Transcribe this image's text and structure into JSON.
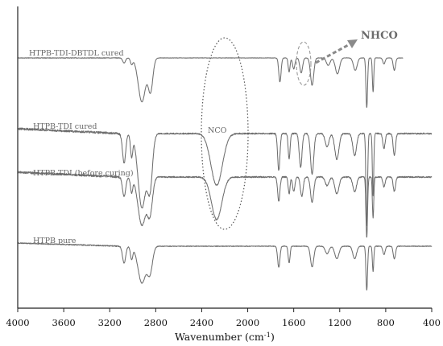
{
  "chart_data": {
    "type": "line",
    "title": "",
    "xlabel": "Wavenumber (cm",
    "xlabel_sup": "-1",
    "xlabel_close": ")",
    "ylabel": "",
    "xlim": [
      4000,
      400
    ],
    "x_reversed": true,
    "xticks": [
      4000,
      3600,
      3200,
      2800,
      2400,
      2000,
      1600,
      1200,
      800,
      400
    ],
    "y_axis_ticks": false,
    "grid": false,
    "series": [
      {
        "name": "HTPB-TDI-DBTDL cured",
        "range": [
          4000,
          650
        ],
        "bands": [
          {
            "x": 3075,
            "depth": 0.1,
            "width": 12
          },
          {
            "x": 3010,
            "depth": 0.12,
            "width": 10
          },
          {
            "x": 2920,
            "depth": 0.88,
            "width": 32
          },
          {
            "x": 2845,
            "depth": 0.65,
            "width": 20
          },
          {
            "x": 1720,
            "depth": 0.48,
            "width": 10
          },
          {
            "x": 1640,
            "depth": 0.28,
            "width": 8
          },
          {
            "x": 1600,
            "depth": 0.22,
            "width": 10
          },
          {
            "x": 1535,
            "depth": 0.3,
            "width": 12
          },
          {
            "x": 1440,
            "depth": 0.55,
            "width": 14
          },
          {
            "x": 1300,
            "depth": 0.15,
            "width": 16
          },
          {
            "x": 1220,
            "depth": 0.32,
            "width": 18
          },
          {
            "x": 1065,
            "depth": 0.25,
            "width": 16
          },
          {
            "x": 965,
            "depth": 1.0,
            "width": 7
          },
          {
            "x": 910,
            "depth": 0.68,
            "width": 6
          },
          {
            "x": 815,
            "depth": 0.12,
            "width": 10
          },
          {
            "x": 725,
            "depth": 0.25,
            "width": 10
          }
        ]
      },
      {
        "name": "HTPB-TDI cured",
        "range": [
          4000,
          400
        ],
        "bands": [
          {
            "x": 3075,
            "depth": 0.4,
            "width": 14
          },
          {
            "x": 3010,
            "depth": 0.3,
            "width": 10
          },
          {
            "x": 2920,
            "depth": 1.0,
            "width": 34
          },
          {
            "x": 2850,
            "depth": 0.7,
            "width": 22
          },
          {
            "x": 2270,
            "depth": 0.7,
            "width": 50
          },
          {
            "x": 1730,
            "depth": 0.5,
            "width": 10
          },
          {
            "x": 1640,
            "depth": 0.35,
            "width": 8
          },
          {
            "x": 1540,
            "depth": 0.45,
            "width": 12
          },
          {
            "x": 1440,
            "depth": 0.55,
            "width": 14
          },
          {
            "x": 1310,
            "depth": 0.18,
            "width": 16
          },
          {
            "x": 1225,
            "depth": 0.35,
            "width": 18
          },
          {
            "x": 1070,
            "depth": 0.3,
            "width": 16
          },
          {
            "x": 965,
            "depth": 1.25,
            "width": 7
          },
          {
            "x": 910,
            "depth": 0.85,
            "width": 6
          },
          {
            "x": 815,
            "depth": 0.2,
            "width": 10
          },
          {
            "x": 725,
            "depth": 0.3,
            "width": 10
          }
        ]
      },
      {
        "name": "HTPB-TDI (before curing)",
        "range": [
          4000,
          400
        ],
        "bands": [
          {
            "x": 3075,
            "depth": 0.4,
            "width": 14
          },
          {
            "x": 3010,
            "depth": 0.3,
            "width": 10
          },
          {
            "x": 2920,
            "depth": 1.0,
            "width": 34
          },
          {
            "x": 2850,
            "depth": 0.72,
            "width": 22
          },
          {
            "x": 2270,
            "depth": 0.88,
            "width": 45
          },
          {
            "x": 1730,
            "depth": 0.5,
            "width": 10
          },
          {
            "x": 1640,
            "depth": 0.35,
            "width": 8
          },
          {
            "x": 1600,
            "depth": 0.3,
            "width": 10
          },
          {
            "x": 1530,
            "depth": 0.4,
            "width": 12
          },
          {
            "x": 1440,
            "depth": 0.52,
            "width": 14
          },
          {
            "x": 1310,
            "depth": 0.18,
            "width": 16
          },
          {
            "x": 1225,
            "depth": 0.35,
            "width": 18
          },
          {
            "x": 1070,
            "depth": 0.3,
            "width": 16
          },
          {
            "x": 965,
            "depth": 1.25,
            "width": 7
          },
          {
            "x": 910,
            "depth": 0.85,
            "width": 6
          },
          {
            "x": 815,
            "depth": 0.2,
            "width": 10
          },
          {
            "x": 725,
            "depth": 0.3,
            "width": 10
          }
        ]
      },
      {
        "name": "HTPB pure",
        "range": [
          4000,
          400
        ],
        "bands": [
          {
            "x": 3075,
            "depth": 0.4,
            "width": 14
          },
          {
            "x": 3010,
            "depth": 0.3,
            "width": 10
          },
          {
            "x": 2920,
            "depth": 0.88,
            "width": 34
          },
          {
            "x": 2850,
            "depth": 0.6,
            "width": 22
          },
          {
            "x": 1730,
            "depth": 0.5,
            "width": 10
          },
          {
            "x": 1640,
            "depth": 0.4,
            "width": 8
          },
          {
            "x": 1440,
            "depth": 0.5,
            "width": 14
          },
          {
            "x": 1310,
            "depth": 0.18,
            "width": 16
          },
          {
            "x": 1225,
            "depth": 0.3,
            "width": 18
          },
          {
            "x": 1070,
            "depth": 0.3,
            "width": 16
          },
          {
            "x": 965,
            "depth": 1.05,
            "width": 7
          },
          {
            "x": 910,
            "depth": 0.6,
            "width": 6
          },
          {
            "x": 815,
            "depth": 0.2,
            "width": 10
          },
          {
            "x": 725,
            "depth": 0.3,
            "width": 10
          }
        ]
      }
    ],
    "annotations": [
      {
        "text": "NCO",
        "x": 2270,
        "style": "dotted-ellipse"
      },
      {
        "text": "NHCO",
        "x": 1530,
        "style": "dashed-ellipse-arrow"
      }
    ]
  }
}
